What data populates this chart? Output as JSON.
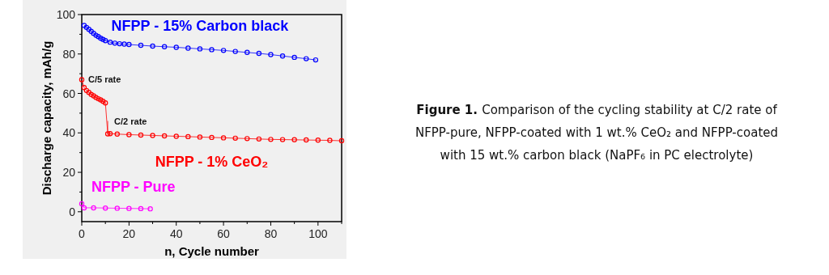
{
  "chart_data": {
    "type": "line",
    "xlabel": "n, Cycle number",
    "ylabel": "Discharge capacity, mAh/g",
    "xlim": [
      0,
      110
    ],
    "ylim": [
      -5,
      100
    ],
    "xticks": [
      0,
      {
        "value": 10,
        "label": null
      },
      20,
      {
        "value": 30,
        "label": null
      },
      40,
      {
        "value": 50,
        "label": null
      },
      60,
      {
        "value": 70,
        "label": null
      },
      80,
      {
        "value": 90,
        "label": null
      },
      100,
      {
        "value": 110,
        "label": null
      }
    ],
    "yticks": [
      0,
      {
        "value": 10,
        "label": null
      },
      20,
      {
        "value": 30,
        "label": null
      },
      40,
      {
        "value": 50,
        "label": null
      },
      60,
      {
        "value": 70,
        "label": null
      },
      80,
      {
        "value": 90,
        "label": null
      },
      100
    ],
    "marker": "circle",
    "line_style": "solid",
    "grid": false,
    "series": [
      {
        "name": "NFPP - 15% Carbon black",
        "color": "#0000ff",
        "x": [
          1,
          2,
          3,
          4,
          5,
          6,
          7,
          8,
          9,
          10,
          12,
          14,
          16,
          18,
          20,
          25,
          30,
          35,
          40,
          45,
          50,
          55,
          60,
          65,
          70,
          75,
          80,
          85,
          90,
          95,
          99
        ],
        "values": [
          94.5,
          93.5,
          92.5,
          91.5,
          90.5,
          89.5,
          88.8,
          88,
          87.4,
          86.8,
          86,
          85.5,
          85.2,
          85,
          84.8,
          84.4,
          84,
          83.7,
          83.4,
          83,
          82.6,
          82.2,
          81.8,
          81.3,
          80.8,
          80.3,
          79.7,
          79,
          78.3,
          77.6,
          77
        ]
      },
      {
        "name": "NFPP - 1% CeO₂",
        "color": "#ff0000",
        "x": [
          0,
          1,
          2,
          3,
          4,
          5,
          6,
          7,
          8,
          9,
          10,
          11,
          12,
          15,
          20,
          25,
          30,
          35,
          40,
          45,
          50,
          55,
          60,
          65,
          70,
          75,
          80,
          85,
          90,
          95,
          100,
          105,
          110
        ],
        "values": [
          67,
          63,
          61.5,
          60.5,
          59.5,
          58.8,
          58,
          57.3,
          56.7,
          56,
          55.2,
          39.5,
          39.6,
          39.4,
          39.1,
          38.9,
          38.7,
          38.5,
          38.3,
          38.1,
          37.9,
          37.7,
          37.5,
          37.3,
          37.1,
          36.9,
          36.7,
          36.6,
          36.5,
          36.4,
          36.3,
          36.2,
          36
        ]
      },
      {
        "name": "NFPP - Pure",
        "color": "#ff00ff",
        "x": [
          0,
          1,
          5,
          10,
          15,
          20,
          25,
          29
        ],
        "values": [
          4,
          2,
          2,
          1.9,
          1.8,
          1.7,
          1.6,
          1.5
        ]
      }
    ],
    "annotations": [
      {
        "text": "C/5 rate",
        "x": 0,
        "y": 67
      },
      {
        "text": "C/2 rate",
        "x": 11,
        "y": 39.5
      },
      "Figure 1. Comparison of the cycling stability at C/2 rate of NFPP-pure, NFPP-coated with 1 wt.% CeO₂ and NFPP-coated with 15 wt.% carbon black (NaPF₆ in PC electrolyte)"
    ]
  }
}
